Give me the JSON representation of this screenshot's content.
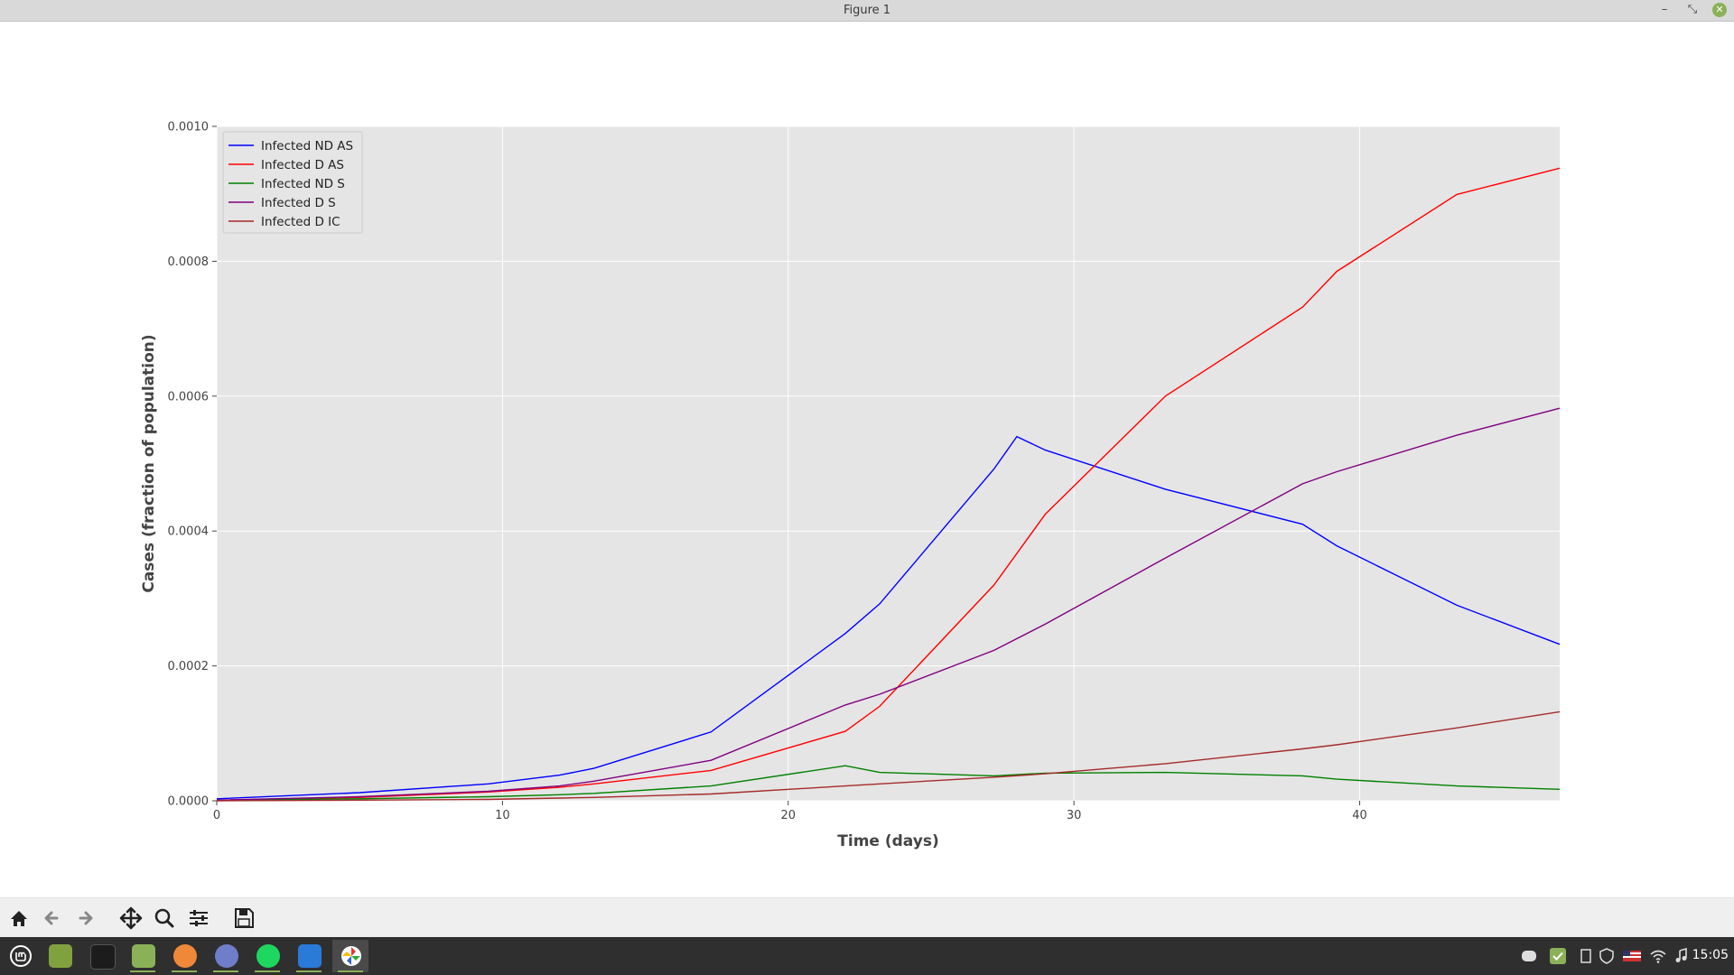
{
  "window": {
    "title": "Figure 1",
    "minimize_label": "–",
    "maximize_label": "⤡",
    "close_label": "✕"
  },
  "toolbar": {
    "tools": [
      "home-icon",
      "back-icon",
      "forward-icon",
      "pan-icon",
      "zoom-icon",
      "configure-subplots-icon",
      "save-icon"
    ]
  },
  "taskbar": {
    "apps": [
      "mint-menu",
      "show-desktop",
      "terminal",
      "files",
      "firefox",
      "discord",
      "spotify",
      "vscode",
      "pinwheel-app"
    ],
    "clock": "15:05"
  },
  "colors": {
    "blue": "#0000ff",
    "red": "#ff0000",
    "green": "#008000",
    "purple": "#800080",
    "brown": "#a52a2a",
    "axes_bg": "#e5e5e5"
  },
  "chart_data": {
    "type": "line",
    "title": "",
    "xlabel": "Time (days)",
    "ylabel": "Cases (fraction of population)",
    "xlim": [
      0,
      47
    ],
    "ylim": [
      0,
      0.001
    ],
    "xticks": [
      0,
      10,
      20,
      30,
      40
    ],
    "xtick_labels": [
      "0",
      "10",
      "20",
      "30",
      "40"
    ],
    "yticks": [
      0,
      0.0002,
      0.0004,
      0.0006,
      0.0008,
      0.001
    ],
    "ytick_labels": [
      "0.0000",
      "0.0002",
      "0.0004",
      "0.0006",
      "0.0008",
      "0.0010"
    ],
    "grid": true,
    "legend_position": "upper-left",
    "series": [
      {
        "name": "Infected ND AS",
        "color": "#0000ff",
        "x": [
          0,
          5,
          9.5,
          12,
          13.2,
          17.3,
          22,
          23.2,
          27.2,
          28,
          29,
          33.2,
          38,
          39.2,
          43.4,
          47
        ],
        "y": [
          3e-06,
          1.2e-05,
          2.5e-05,
          3.8e-05,
          4.8e-05,
          0.000102,
          0.000248,
          0.000292,
          0.000492,
          0.00054,
          0.00052,
          0.000462,
          0.00041,
          0.000378,
          0.00029,
          0.000232
        ]
      },
      {
        "name": "Infected D AS",
        "color": "#ff0000",
        "x": [
          0,
          5,
          9.5,
          12,
          13.2,
          17.3,
          22,
          23.2,
          27.2,
          29,
          33.2,
          38,
          39.2,
          43.4,
          47
        ],
        "y": [
          1e-06,
          5e-06,
          1.3e-05,
          2e-05,
          2.5e-05,
          4.5e-05,
          0.000103,
          0.00014,
          0.00032,
          0.000425,
          0.0006,
          0.000732,
          0.000785,
          0.000899,
          0.000938
        ]
      },
      {
        "name": "Infected ND S",
        "color": "#008000",
        "x": [
          0,
          5,
          9.5,
          12,
          13.2,
          17.3,
          22,
          23.2,
          27.2,
          29,
          33.2,
          38,
          39.2,
          43.4,
          47
        ],
        "y": [
          1e-06,
          3e-06,
          6e-06,
          9e-06,
          1.1e-05,
          2.2e-05,
          5.2e-05,
          4.2e-05,
          3.7e-05,
          4.1e-05,
          4.2e-05,
          3.7e-05,
          3.2e-05,
          2.2e-05,
          1.7e-05
        ]
      },
      {
        "name": "Infected D S",
        "color": "#800080",
        "x": [
          0,
          5,
          9.5,
          12,
          13.2,
          17.3,
          22,
          23.2,
          27.2,
          29,
          33.2,
          38,
          39.2,
          43.4,
          47
        ],
        "y": [
          1e-06,
          6e-06,
          1.4e-05,
          2.2e-05,
          2.9e-05,
          6e-05,
          0.000142,
          0.000158,
          0.000223,
          0.000262,
          0.00036,
          0.00047,
          0.000488,
          0.000542,
          0.000582
        ]
      },
      {
        "name": "Infected D IC",
        "color": "#a52a2a",
        "x": [
          0,
          5,
          9.5,
          12,
          13.2,
          17.3,
          22,
          23.2,
          27.2,
          29,
          33.2,
          38,
          39.2,
          43.4,
          47
        ],
        "y": [
          0.0,
          1e-06,
          2e-06,
          4e-06,
          5e-06,
          1e-05,
          2.2e-05,
          2.5e-05,
          3.5e-05,
          4e-05,
          5.5e-05,
          7.7e-05,
          8.3e-05,
          0.000108,
          0.000132
        ]
      }
    ]
  }
}
